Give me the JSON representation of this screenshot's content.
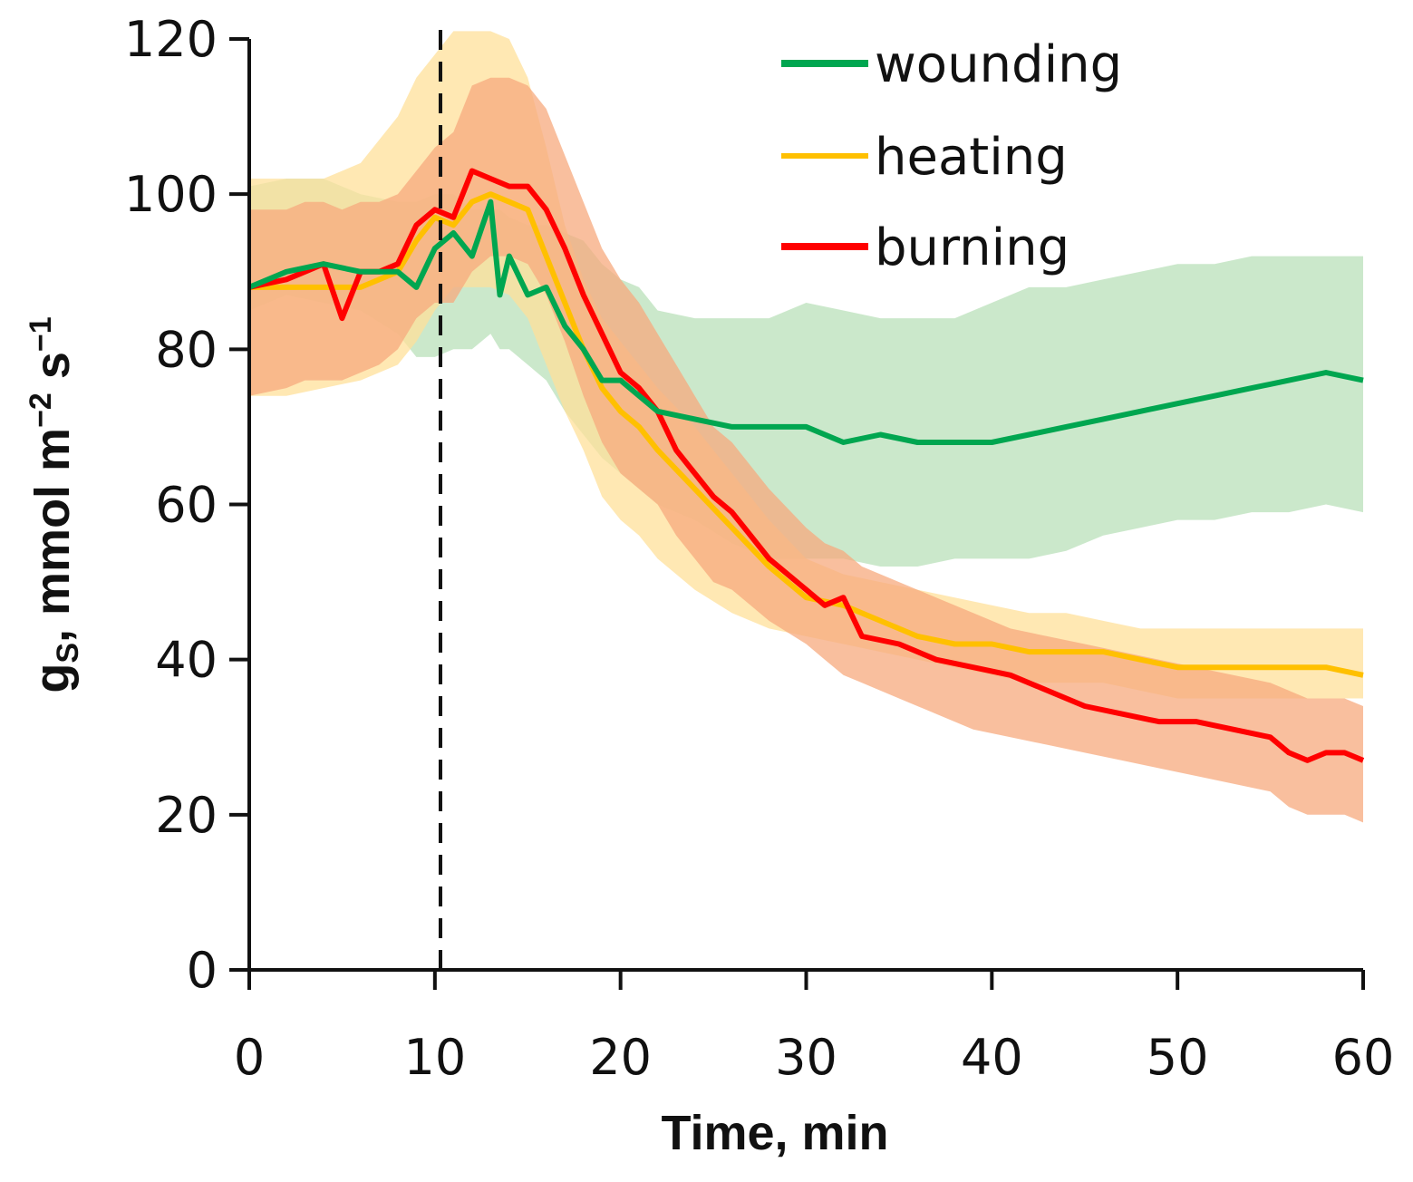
{
  "chart_data": {
    "type": "line",
    "xlabel": "Time, min",
    "ylabel_parts": {
      "g": "g",
      "sub": "S",
      "unit": ", mmol m",
      "exp1": "−2",
      "s": " s",
      "exp2": "−1"
    },
    "xlim": [
      0,
      60
    ],
    "ylim": [
      0,
      120
    ],
    "x_ticks": [
      "0",
      "10",
      "20",
      "30",
      "40",
      "50",
      "60"
    ],
    "y_ticks": [
      "0",
      "20",
      "40",
      "60",
      "80",
      "100",
      "120"
    ],
    "vertical_marker_x": 10.3,
    "legend_position": "top-right",
    "colors": {
      "wounding": "#00a650",
      "wounding_band": "#b9e0b9",
      "heating": "#ffc000",
      "heating_band": "#ffe09a",
      "burning": "#ff0000",
      "burning_band": "#f7a97e"
    },
    "series": [
      {
        "name": "wounding",
        "color": "#00a650",
        "band_color": "#b9e0b9",
        "x": [
          0,
          2,
          4,
          6,
          8,
          9,
          10,
          11,
          12,
          13,
          13.5,
          14,
          15,
          16,
          17,
          18,
          19,
          20,
          21,
          22,
          24,
          26,
          28,
          30,
          32,
          34,
          36,
          38,
          40,
          42,
          44,
          46,
          48,
          50,
          52,
          54,
          56,
          58,
          60
        ],
        "values": [
          88,
          90,
          91,
          90,
          90,
          88,
          93,
          95,
          92,
          99,
          87,
          92,
          87,
          88,
          83,
          80,
          76,
          76,
          74,
          72,
          71,
          70,
          70,
          70,
          68,
          69,
          68,
          68,
          68,
          69,
          70,
          71,
          72,
          73,
          74,
          75,
          76,
          77,
          76
        ],
        "lower": [
          85,
          87,
          86,
          85,
          82,
          79,
          79,
          80,
          80,
          82,
          80,
          80,
          78,
          76,
          72,
          69,
          66,
          64,
          62,
          60,
          58,
          55,
          53,
          53,
          53,
          52,
          52,
          53,
          53,
          53,
          54,
          56,
          57,
          58,
          58,
          59,
          59,
          60,
          59
        ],
        "upper": [
          101,
          102,
          102,
          100,
          99,
          99,
          100,
          100,
          98,
          98,
          98,
          97,
          96,
          96,
          95,
          94,
          91,
          89,
          88,
          85,
          84,
          84,
          84,
          86,
          85,
          84,
          84,
          84,
          86,
          88,
          88,
          89,
          90,
          91,
          91,
          92,
          92,
          92,
          92
        ]
      },
      {
        "name": "heating",
        "color": "#ffc000",
        "band_color": "#ffe09a",
        "x": [
          0,
          2,
          4,
          6,
          8,
          9,
          10,
          11,
          12,
          13,
          14,
          15,
          16,
          17,
          18,
          19,
          20,
          21,
          22,
          24,
          26,
          28,
          30,
          32,
          34,
          36,
          38,
          40,
          42,
          44,
          46,
          48,
          50,
          52,
          54,
          56,
          58,
          60
        ],
        "values": [
          88,
          88,
          88,
          88,
          90,
          94,
          97,
          96,
          99,
          100,
          99,
          98,
          92,
          86,
          80,
          75,
          72,
          70,
          67,
          62,
          57,
          52,
          48,
          47,
          45,
          43,
          42,
          42,
          41,
          41,
          41,
          40,
          39,
          39,
          39,
          39,
          39,
          38
        ],
        "lower": [
          74,
          74,
          75,
          76,
          78,
          81,
          85,
          88,
          88,
          88,
          87,
          84,
          78,
          72,
          67,
          61,
          58,
          56,
          53,
          49,
          46,
          44,
          43,
          42,
          41,
          40,
          39,
          38,
          37,
          37,
          37,
          36,
          35,
          35,
          35,
          35,
          35,
          35
        ],
        "upper": [
          102,
          102,
          102,
          104,
          110,
          115,
          118,
          121,
          121,
          121,
          120,
          115,
          106,
          96,
          89,
          84,
          81,
          78,
          75,
          70,
          64,
          58,
          53,
          51,
          50,
          49,
          48,
          47,
          46,
          46,
          45,
          44,
          44,
          44,
          44,
          44,
          44,
          44
        ]
      },
      {
        "name": "burning",
        "color": "#ff0000",
        "band_color": "#f7a97e",
        "x": [
          0,
          2,
          3,
          4,
          5,
          6,
          7,
          8,
          9,
          10,
          11,
          12,
          13,
          14,
          15,
          16,
          17,
          18,
          19,
          20,
          21,
          22,
          23,
          24,
          25,
          26,
          27,
          28,
          30,
          31,
          32,
          33,
          35,
          37,
          39,
          41,
          43,
          45,
          47,
          49,
          51,
          53,
          55,
          56,
          57,
          58,
          59,
          60
        ],
        "values": [
          88,
          89,
          90,
          91,
          84,
          90,
          90,
          91,
          96,
          98,
          97,
          103,
          102,
          101,
          101,
          98,
          93,
          87,
          82,
          77,
          75,
          72,
          67,
          64,
          61,
          59,
          56,
          53,
          49,
          47,
          48,
          43,
          42,
          40,
          39,
          38,
          36,
          34,
          33,
          32,
          32,
          31,
          30,
          28,
          27,
          28,
          28,
          27
        ],
        "lower": [
          74,
          75,
          76,
          76,
          76,
          77,
          78,
          80,
          84,
          86,
          86,
          90,
          92,
          92,
          91,
          87,
          81,
          74,
          68,
          64,
          62,
          60,
          56,
          53,
          50,
          49,
          47,
          45,
          42,
          40,
          38,
          37,
          35,
          33,
          31,
          30,
          29,
          28,
          27,
          26,
          25,
          24,
          23,
          21,
          20,
          20,
          20,
          19
        ],
        "upper": [
          98,
          98,
          99,
          99,
          98,
          99,
          99,
          100,
          103,
          106,
          108,
          114,
          115,
          115,
          114,
          111,
          105,
          99,
          93,
          89,
          86,
          82,
          78,
          74,
          70,
          68,
          65,
          62,
          57,
          55,
          54,
          52,
          50,
          48,
          46,
          44,
          43,
          42,
          41,
          40,
          39,
          38,
          37,
          36,
          35,
          35,
          35,
          34
        ]
      }
    ]
  }
}
